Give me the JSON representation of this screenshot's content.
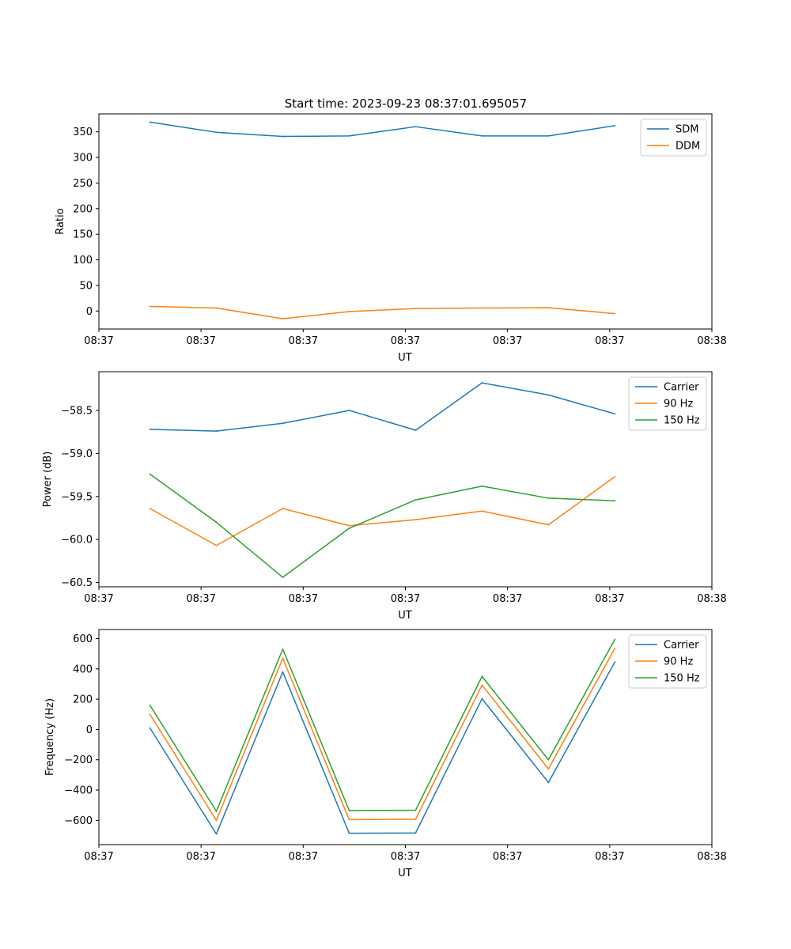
{
  "chart_data": [
    {
      "type": "line",
      "title": "Start time: 2023-09-23 08:37:01.695057",
      "xlabel": "UT",
      "ylabel": "Ratio",
      "xlim": [
        0,
        6
      ],
      "ylim": [
        -35,
        385
      ],
      "yticks": [
        0,
        50,
        100,
        150,
        200,
        250,
        300,
        350
      ],
      "xticks": [
        0,
        1,
        2,
        3,
        4,
        5,
        6
      ],
      "xtick_labels": [
        "08:37",
        "08:37",
        "08:37",
        "08:37",
        "08:37",
        "08:37",
        "08:38"
      ],
      "x": [
        0.5,
        1.15,
        1.8,
        2.45,
        3.1,
        3.75,
        4.4,
        5.05
      ],
      "legend_position": "top-right",
      "series": [
        {
          "name": "SDM",
          "color": "#1f77b4",
          "values": [
            369,
            349,
            341,
            342,
            360,
            342,
            342,
            362
          ]
        },
        {
          "name": "DDM",
          "color": "#ff7f0e",
          "values": [
            9,
            6,
            -15,
            -1,
            5,
            6,
            6.5,
            -5
          ]
        }
      ]
    },
    {
      "type": "line",
      "title": "",
      "xlabel": "UT",
      "ylabel": "Power (dB)",
      "xlim": [
        0,
        6
      ],
      "ylim": [
        -60.55,
        -58.05
      ],
      "yticks": [
        -60.5,
        -60.0,
        -59.5,
        -59.0,
        -58.5
      ],
      "ytick_labels": [
        "−60.5",
        "−60.0",
        "−59.5",
        "−59.0",
        "−58.5"
      ],
      "xticks": [
        0,
        1,
        2,
        3,
        4,
        5,
        6
      ],
      "xtick_labels": [
        "08:37",
        "08:37",
        "08:37",
        "08:37",
        "08:37",
        "08:37",
        "08:38"
      ],
      "x": [
        0.5,
        1.15,
        1.8,
        2.45,
        3.1,
        3.75,
        4.4,
        5.05
      ],
      "legend_position": "top-right",
      "series": [
        {
          "name": "Carrier",
          "color": "#1f77b4",
          "values": [
            -58.72,
            -58.74,
            -58.65,
            -58.5,
            -58.73,
            -58.18,
            -58.32,
            -58.54
          ]
        },
        {
          "name": "90 Hz",
          "color": "#ff7f0e",
          "values": [
            -59.64,
            -60.07,
            -59.64,
            -59.84,
            -59.77,
            -59.67,
            -59.83,
            -59.27
          ]
        },
        {
          "name": "150 Hz",
          "color": "#2ca02c",
          "values": [
            -59.24,
            -59.8,
            -60.44,
            -59.87,
            -59.54,
            -59.38,
            -59.52,
            -59.55
          ]
        }
      ]
    },
    {
      "type": "line",
      "title": "",
      "xlabel": "UT",
      "ylabel": "Frequency (Hz)",
      "xlim": [
        0,
        6
      ],
      "ylim": [
        -760,
        660
      ],
      "yticks": [
        -600,
        -400,
        -200,
        0,
        200,
        400,
        600
      ],
      "ytick_labels": [
        "−600",
        "−400",
        "−200",
        "0",
        "200",
        "400",
        "600"
      ],
      "xticks": [
        0,
        1,
        2,
        3,
        4,
        5,
        6
      ],
      "xtick_labels": [
        "08:37",
        "08:37",
        "08:37",
        "08:37",
        "08:37",
        "08:37",
        "08:38"
      ],
      "x": [
        0.5,
        1.15,
        1.8,
        2.45,
        3.1,
        3.75,
        4.4,
        5.05
      ],
      "legend_position": "top-right",
      "series": [
        {
          "name": "Carrier",
          "color": "#1f77b4",
          "values": [
            10,
            -690,
            380,
            -685,
            -683,
            203,
            -350,
            445
          ]
        },
        {
          "name": "90 Hz",
          "color": "#ff7f0e",
          "values": [
            100,
            -600,
            470,
            -595,
            -593,
            293,
            -260,
            535
          ]
        },
        {
          "name": "150 Hz",
          "color": "#2ca02c",
          "values": [
            160,
            -540,
            530,
            -535,
            -533,
            350,
            -200,
            595
          ]
        }
      ]
    }
  ]
}
